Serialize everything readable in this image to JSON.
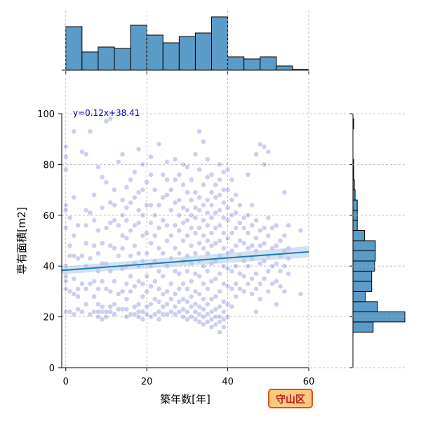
{
  "chart_data": {
    "type": "scatter",
    "subtype": "jointplot-with-regression",
    "xlabel": "築年数[年]",
    "ylabel": "専有面積[m2]",
    "xlim": [
      -1,
      60
    ],
    "ylim": [
      0,
      100
    ],
    "x_ticks": [
      0,
      20,
      40,
      60
    ],
    "y_ticks": [
      0,
      20,
      40,
      60,
      80,
      100
    ],
    "grid": true,
    "regression": {
      "equation": "y=0.12x+38.41",
      "slope": 0.12,
      "intercept": 38.41,
      "x_range": [
        -1,
        60
      ],
      "line_color": "#1f77b4",
      "band_color": "#aecbe6"
    },
    "badge": {
      "text": "守山区",
      "fill": "#ffc880",
      "stroke": "#e0521a",
      "text_color": "#b22222"
    },
    "point_color": "#3a3acc",
    "hist_color": "#5b9bc8",
    "x_hist": {
      "bin_edges": [
        0,
        4,
        8,
        12,
        16,
        20,
        24,
        28,
        32,
        36,
        40,
        44,
        48,
        52,
        56,
        60
      ],
      "counts": [
        62,
        26,
        33,
        31,
        64,
        50,
        39,
        48,
        53,
        76,
        19,
        16,
        19,
        6,
        1
      ]
    },
    "y_hist": {
      "bin_edges": [
        14,
        18,
        22,
        26,
        30,
        34,
        38,
        42,
        46,
        50,
        54,
        58,
        62,
        66,
        70,
        74,
        78,
        82,
        86,
        90,
        94,
        98
      ],
      "counts": [
        28,
        72,
        34,
        17,
        26,
        26,
        30,
        31,
        31,
        16,
        6,
        6,
        6,
        3,
        2,
        1,
        1,
        0,
        0,
        0,
        1
      ]
    },
    "points": [
      [
        0,
        22
      ],
      [
        0,
        31
      ],
      [
        0,
        34
      ],
      [
        0,
        36
      ],
      [
        0,
        40
      ],
      [
        0,
        55
      ],
      [
        0,
        62
      ],
      [
        0,
        64
      ],
      [
        0,
        78
      ],
      [
        0,
        83
      ],
      [
        0,
        87
      ],
      [
        1,
        22
      ],
      [
        1,
        30
      ],
      [
        1,
        44
      ],
      [
        1,
        48
      ],
      [
        1,
        59
      ],
      [
        2,
        21
      ],
      [
        2,
        29
      ],
      [
        2,
        35
      ],
      [
        2,
        44
      ],
      [
        2,
        52
      ],
      [
        2,
        67
      ],
      [
        2,
        93
      ],
      [
        3,
        23
      ],
      [
        3,
        28
      ],
      [
        3,
        31
      ],
      [
        3,
        43
      ],
      [
        3,
        56
      ],
      [
        4,
        22
      ],
      [
        4,
        33
      ],
      [
        4,
        44
      ],
      [
        4,
        85
      ],
      [
        5,
        25
      ],
      [
        5,
        31
      ],
      [
        5,
        40
      ],
      [
        5,
        49
      ],
      [
        5,
        56
      ],
      [
        5,
        62
      ],
      [
        5,
        84
      ],
      [
        6,
        21
      ],
      [
        6,
        33
      ],
      [
        6,
        43
      ],
      [
        6,
        61
      ],
      [
        6,
        93
      ],
      [
        7,
        22
      ],
      [
        7,
        28
      ],
      [
        7,
        34
      ],
      [
        7,
        48
      ],
      [
        7,
        58
      ],
      [
        7,
        68
      ],
      [
        8,
        20
      ],
      [
        8,
        22
      ],
      [
        8,
        25
      ],
      [
        8,
        31
      ],
      [
        8,
        38
      ],
      [
        8,
        45
      ],
      [
        8,
        54
      ],
      [
        8,
        79
      ],
      [
        9,
        19
      ],
      [
        9,
        22
      ],
      [
        9,
        24
      ],
      [
        9,
        34
      ],
      [
        9,
        41
      ],
      [
        9,
        49
      ],
      [
        9,
        63
      ],
      [
        9,
        75
      ],
      [
        10,
        20
      ],
      [
        10,
        22
      ],
      [
        10,
        31
      ],
      [
        10,
        41
      ],
      [
        10,
        55
      ],
      [
        10,
        73
      ],
      [
        10,
        97
      ],
      [
        11,
        22
      ],
      [
        11,
        24
      ],
      [
        11,
        30
      ],
      [
        11,
        38
      ],
      [
        11,
        48
      ],
      [
        11,
        57
      ],
      [
        11,
        65
      ],
      [
        11,
        98
      ],
      [
        12,
        21
      ],
      [
        12,
        25
      ],
      [
        12,
        34
      ],
      [
        12,
        47
      ],
      [
        12,
        58
      ],
      [
        12,
        64
      ],
      [
        12,
        70
      ],
      [
        13,
        23
      ],
      [
        13,
        29
      ],
      [
        13,
        44
      ],
      [
        13,
        56
      ],
      [
        13,
        81
      ],
      [
        14,
        23
      ],
      [
        14,
        30
      ],
      [
        14,
        39
      ],
      [
        14,
        47
      ],
      [
        14,
        52
      ],
      [
        14,
        60
      ],
      [
        14,
        66
      ],
      [
        14,
        84
      ],
      [
        15,
        20
      ],
      [
        15,
        23
      ],
      [
        15,
        27
      ],
      [
        15,
        33
      ],
      [
        15,
        40
      ],
      [
        15,
        51
      ],
      [
        15,
        58
      ],
      [
        15,
        63
      ],
      [
        15,
        71
      ],
      [
        16,
        21
      ],
      [
        16,
        30
      ],
      [
        16,
        36
      ],
      [
        16,
        44
      ],
      [
        16,
        54
      ],
      [
        16,
        65
      ],
      [
        16,
        74
      ],
      [
        17,
        21
      ],
      [
        17,
        24
      ],
      [
        17,
        32
      ],
      [
        17,
        41
      ],
      [
        17,
        48
      ],
      [
        17,
        56
      ],
      [
        17,
        67
      ],
      [
        17,
        77
      ],
      [
        18,
        20
      ],
      [
        18,
        22
      ],
      [
        18,
        25
      ],
      [
        18,
        34
      ],
      [
        18,
        40
      ],
      [
        18,
        45
      ],
      [
        18,
        57
      ],
      [
        18,
        62
      ],
      [
        18,
        69
      ],
      [
        18,
        86
      ],
      [
        19,
        19
      ],
      [
        19,
        22
      ],
      [
        19,
        28
      ],
      [
        19,
        33
      ],
      [
        19,
        42
      ],
      [
        19,
        52
      ],
      [
        19,
        60
      ],
      [
        19,
        70
      ],
      [
        19,
        80
      ],
      [
        20,
        21
      ],
      [
        20,
        24
      ],
      [
        20,
        30
      ],
      [
        20,
        36
      ],
      [
        20,
        45
      ],
      [
        20,
        53
      ],
      [
        20,
        64
      ],
      [
        20,
        73
      ],
      [
        21,
        20
      ],
      [
        21,
        25
      ],
      [
        21,
        32
      ],
      [
        21,
        40
      ],
      [
        21,
        49
      ],
      [
        21,
        57
      ],
      [
        21,
        64
      ],
      [
        21,
        76
      ],
      [
        21,
        83
      ],
      [
        22,
        21
      ],
      [
        22,
        27
      ],
      [
        22,
        34
      ],
      [
        22,
        42
      ],
      [
        22,
        52
      ],
      [
        22,
        60
      ],
      [
        22,
        70
      ],
      [
        23,
        19
      ],
      [
        23,
        22
      ],
      [
        23,
        26
      ],
      [
        23,
        31
      ],
      [
        23,
        38
      ],
      [
        23,
        47
      ],
      [
        23,
        55
      ],
      [
        23,
        64
      ],
      [
        23,
        88
      ],
      [
        24,
        21
      ],
      [
        24,
        24
      ],
      [
        24,
        29
      ],
      [
        24,
        36
      ],
      [
        24,
        45
      ],
      [
        24,
        58
      ],
      [
        24,
        67
      ],
      [
        24,
        76
      ],
      [
        25,
        21
      ],
      [
        25,
        25
      ],
      [
        25,
        30
      ],
      [
        25,
        40
      ],
      [
        25,
        50
      ],
      [
        25,
        56
      ],
      [
        25,
        68
      ],
      [
        25,
        74
      ],
      [
        25,
        81
      ],
      [
        26,
        22
      ],
      [
        26,
        27
      ],
      [
        26,
        33
      ],
      [
        26,
        43
      ],
      [
        26,
        52
      ],
      [
        26,
        62
      ],
      [
        26,
        70
      ],
      [
        27,
        21
      ],
      [
        27,
        24
      ],
      [
        27,
        29
      ],
      [
        27,
        38
      ],
      [
        27,
        47
      ],
      [
        27,
        56
      ],
      [
        27,
        65
      ],
      [
        27,
        74
      ],
      [
        27,
        82
      ],
      [
        28,
        22
      ],
      [
        28,
        26
      ],
      [
        28,
        31
      ],
      [
        28,
        37
      ],
      [
        28,
        45
      ],
      [
        28,
        54
      ],
      [
        28,
        60
      ],
      [
        28,
        66
      ],
      [
        28,
        76
      ],
      [
        29,
        20
      ],
      [
        29,
        23
      ],
      [
        29,
        27
      ],
      [
        29,
        33
      ],
      [
        29,
        42
      ],
      [
        29,
        50
      ],
      [
        29,
        57
      ],
      [
        29,
        63
      ],
      [
        29,
        72
      ],
      [
        29,
        80
      ],
      [
        30,
        19
      ],
      [
        30,
        22
      ],
      [
        30,
        26
      ],
      [
        30,
        31
      ],
      [
        30,
        38
      ],
      [
        30,
        44
      ],
      [
        30,
        52
      ],
      [
        30,
        58
      ],
      [
        30,
        62
      ],
      [
        30,
        69
      ],
      [
        30,
        79
      ],
      [
        31,
        20
      ],
      [
        31,
        24
      ],
      [
        31,
        28
      ],
      [
        31,
        34
      ],
      [
        31,
        41
      ],
      [
        31,
        48
      ],
      [
        31,
        55
      ],
      [
        31,
        60
      ],
      [
        31,
        66
      ],
      [
        31,
        74
      ],
      [
        32,
        19
      ],
      [
        32,
        22
      ],
      [
        32,
        25
      ],
      [
        32,
        30
      ],
      [
        32,
        37
      ],
      [
        32,
        45
      ],
      [
        32,
        53
      ],
      [
        32,
        59
      ],
      [
        32,
        63
      ],
      [
        32,
        69
      ],
      [
        32,
        84
      ],
      [
        33,
        18
      ],
      [
        33,
        21
      ],
      [
        33,
        24
      ],
      [
        33,
        29
      ],
      [
        33,
        36
      ],
      [
        33,
        42
      ],
      [
        33,
        49
      ],
      [
        33,
        55
      ],
      [
        33,
        62
      ],
      [
        33,
        67
      ],
      [
        33,
        78
      ],
      [
        33,
        93
      ],
      [
        34,
        17
      ],
      [
        34,
        20
      ],
      [
        34,
        23
      ],
      [
        34,
        27
      ],
      [
        34,
        33
      ],
      [
        34,
        40
      ],
      [
        34,
        47
      ],
      [
        34,
        52
      ],
      [
        34,
        58
      ],
      [
        34,
        64
      ],
      [
        34,
        72
      ],
      [
        34,
        89
      ],
      [
        35,
        18
      ],
      [
        35,
        21
      ],
      [
        35,
        25
      ],
      [
        35,
        31
      ],
      [
        35,
        38
      ],
      [
        35,
        45
      ],
      [
        35,
        50
      ],
      [
        35,
        56
      ],
      [
        35,
        61
      ],
      [
        35,
        66
      ],
      [
        35,
        75
      ],
      [
        35,
        82
      ],
      [
        36,
        16
      ],
      [
        36,
        19
      ],
      [
        36,
        22
      ],
      [
        36,
        27
      ],
      [
        36,
        34
      ],
      [
        36,
        41
      ],
      [
        36,
        48
      ],
      [
        36,
        53
      ],
      [
        36,
        59
      ],
      [
        36,
        64
      ],
      [
        36,
        69
      ],
      [
        36,
        76
      ],
      [
        37,
        17
      ],
      [
        37,
        20
      ],
      [
        37,
        23
      ],
      [
        37,
        28
      ],
      [
        37,
        35
      ],
      [
        37,
        42
      ],
      [
        37,
        49
      ],
      [
        37,
        55
      ],
      [
        37,
        61
      ],
      [
        37,
        67
      ],
      [
        37,
        72
      ],
      [
        38,
        14
      ],
      [
        38,
        18
      ],
      [
        38,
        20
      ],
      [
        38,
        24
      ],
      [
        38,
        30
      ],
      [
        38,
        37
      ],
      [
        38,
        44
      ],
      [
        38,
        50
      ],
      [
        38,
        56
      ],
      [
        38,
        62
      ],
      [
        38,
        68
      ],
      [
        38,
        74
      ],
      [
        38,
        80
      ],
      [
        39,
        16
      ],
      [
        39,
        19
      ],
      [
        39,
        22
      ],
      [
        39,
        26
      ],
      [
        39,
        33
      ],
      [
        39,
        40
      ],
      [
        39,
        47
      ],
      [
        39,
        53
      ],
      [
        39,
        59
      ],
      [
        39,
        65
      ],
      [
        39,
        70
      ],
      [
        39,
        77
      ],
      [
        40,
        20
      ],
      [
        40,
        25
      ],
      [
        40,
        32
      ],
      [
        40,
        39
      ],
      [
        40,
        45
      ],
      [
        40,
        51
      ],
      [
        40,
        58
      ],
      [
        40,
        63
      ],
      [
        40,
        70
      ],
      [
        40,
        78
      ],
      [
        41,
        24
      ],
      [
        41,
        31
      ],
      [
        41,
        38
      ],
      [
        41,
        46
      ],
      [
        41,
        53
      ],
      [
        41,
        60
      ],
      [
        41,
        66
      ],
      [
        41,
        74
      ],
      [
        42,
        28
      ],
      [
        42,
        33
      ],
      [
        42,
        40
      ],
      [
        42,
        48
      ],
      [
        42,
        55
      ],
      [
        42,
        61
      ],
      [
        42,
        68
      ],
      [
        43,
        31
      ],
      [
        43,
        37
      ],
      [
        43,
        44
      ],
      [
        43,
        50
      ],
      [
        43,
        57
      ],
      [
        43,
        64
      ],
      [
        44,
        30
      ],
      [
        44,
        36
      ],
      [
        44,
        42
      ],
      [
        44,
        49
      ],
      [
        44,
        55
      ],
      [
        44,
        59
      ],
      [
        45,
        33
      ],
      [
        45,
        40
      ],
      [
        45,
        47
      ],
      [
        45,
        53
      ],
      [
        45,
        60
      ],
      [
        45,
        76
      ],
      [
        46,
        29
      ],
      [
        46,
        35
      ],
      [
        46,
        43
      ],
      [
        46,
        48
      ],
      [
        46,
        56
      ],
      [
        46,
        64
      ],
      [
        47,
        22
      ],
      [
        47,
        31
      ],
      [
        47,
        37
      ],
      [
        47,
        46
      ],
      [
        47,
        51
      ],
      [
        47,
        58
      ],
      [
        47,
        84
      ],
      [
        48,
        27
      ],
      [
        48,
        33
      ],
      [
        48,
        41
      ],
      [
        48,
        48
      ],
      [
        48,
        54
      ],
      [
        48,
        88
      ],
      [
        49,
        35
      ],
      [
        49,
        42
      ],
      [
        49,
        49
      ],
      [
        49,
        55
      ],
      [
        49,
        80
      ],
      [
        49,
        87
      ],
      [
        50,
        30
      ],
      [
        50,
        38
      ],
      [
        50,
        44
      ],
      [
        50,
        52
      ],
      [
        50,
        59
      ],
      [
        50,
        85
      ],
      [
        51,
        33
      ],
      [
        51,
        40
      ],
      [
        51,
        47
      ],
      [
        51,
        55
      ],
      [
        52,
        25
      ],
      [
        52,
        34
      ],
      [
        52,
        41
      ],
      [
        52,
        48
      ],
      [
        52,
        56
      ],
      [
        53,
        32
      ],
      [
        53,
        38
      ],
      [
        53,
        44
      ],
      [
        53,
        50
      ],
      [
        54,
        30
      ],
      [
        54,
        40
      ],
      [
        54,
        46
      ],
      [
        54,
        52
      ],
      [
        54,
        69
      ],
      [
        55,
        37
      ],
      [
        55,
        43
      ],
      [
        55,
        47
      ],
      [
        55,
        56
      ],
      [
        58,
        29
      ],
      [
        58,
        54
      ]
    ]
  }
}
